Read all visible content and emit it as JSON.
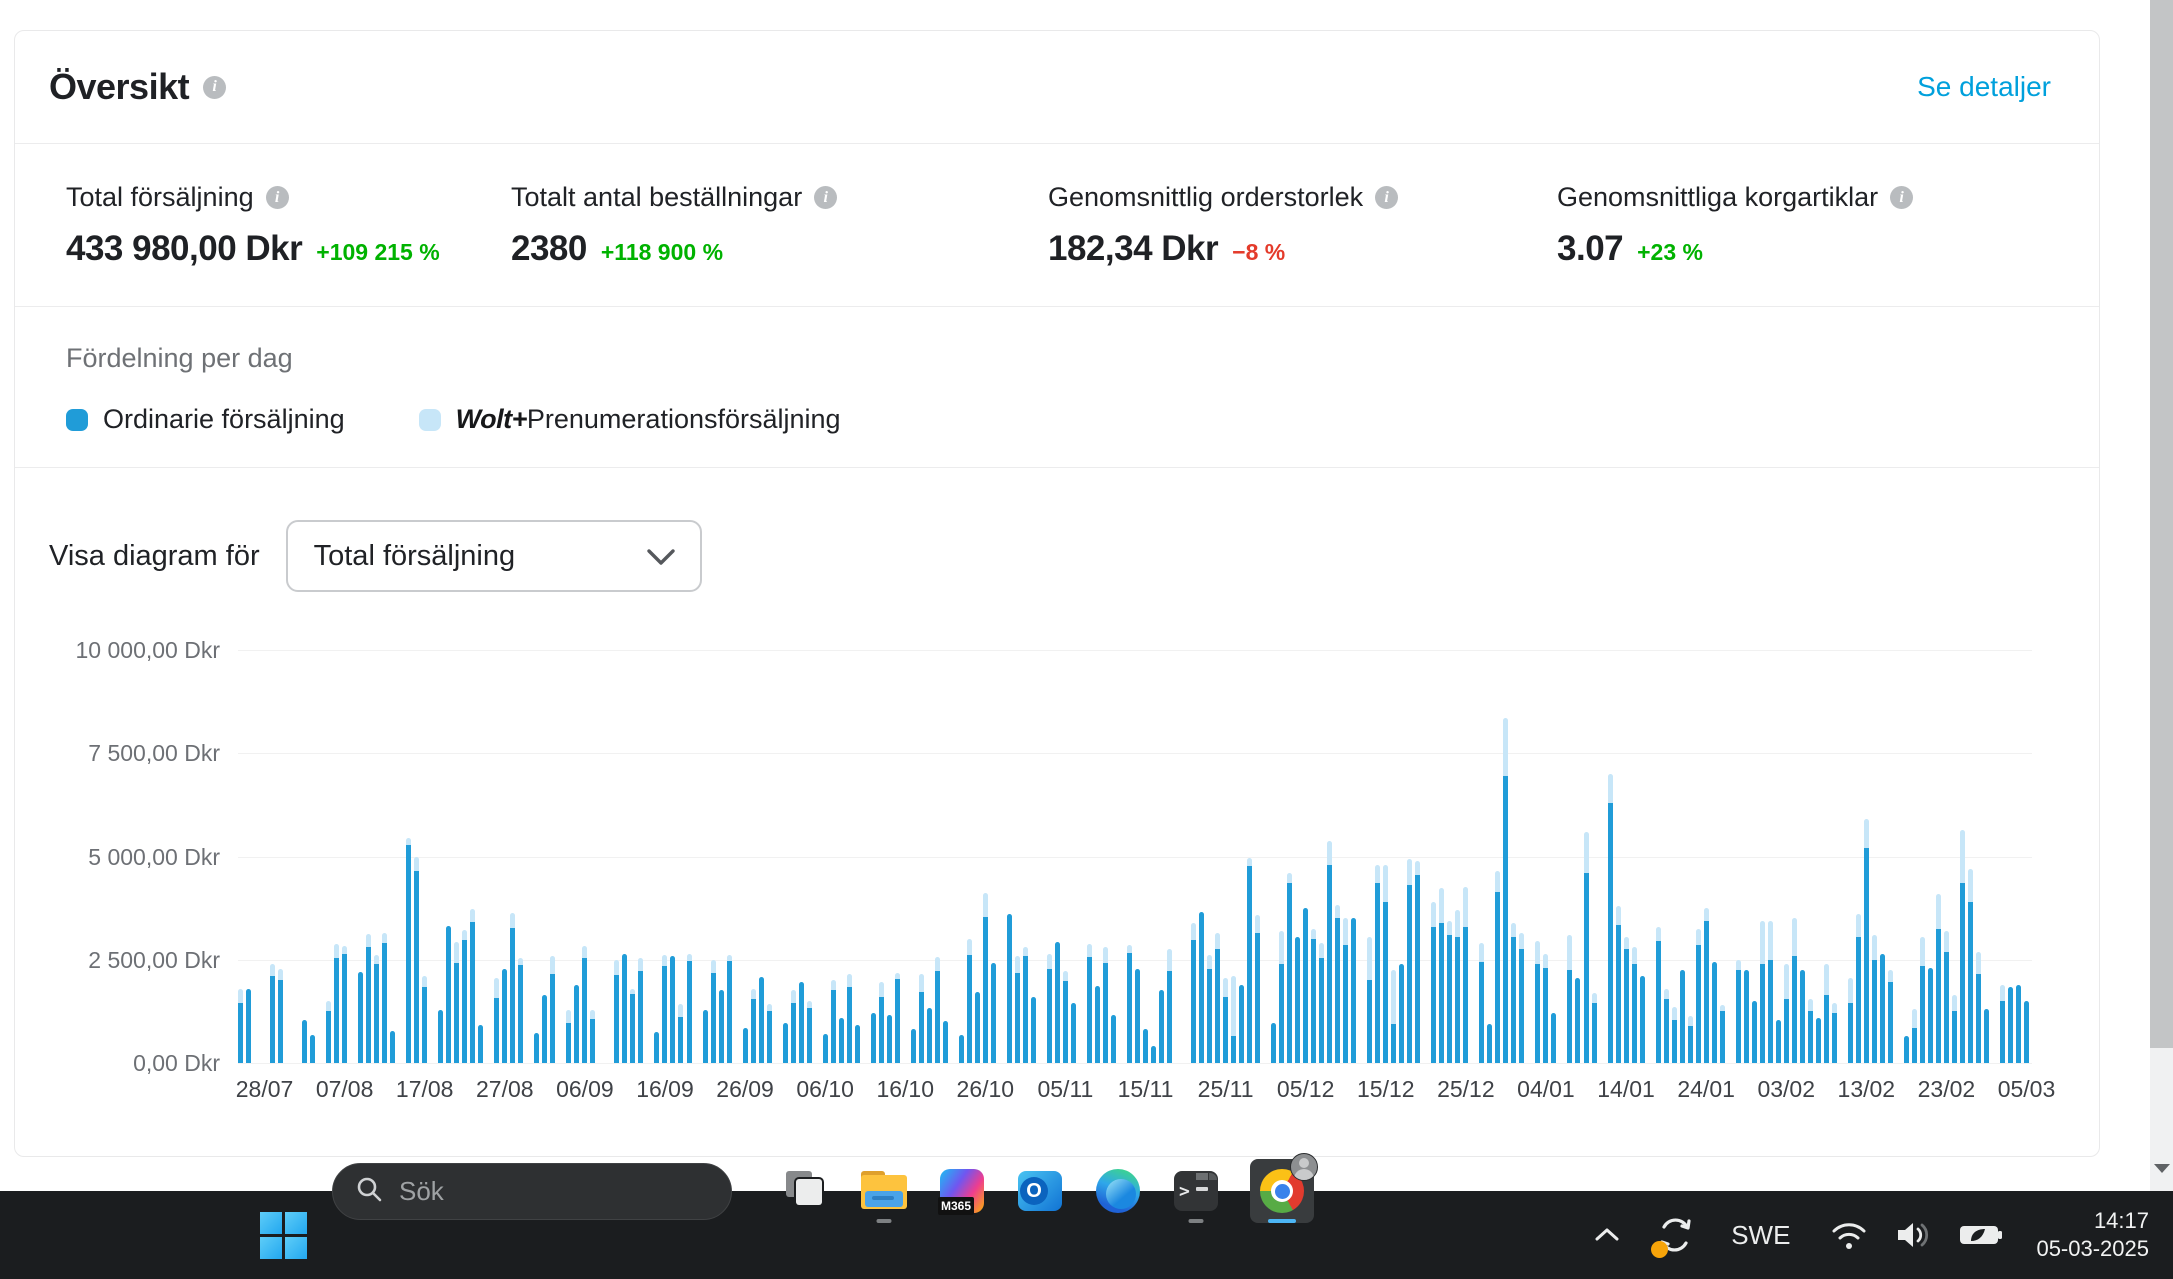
{
  "overview_card": {
    "title": "Översikt",
    "see_details": "Se detaljer",
    "stats": [
      {
        "label": "Total försäljning",
        "value": "433 980,00 Dkr",
        "delta": "+109 215 %",
        "delta_color": "#00b200"
      },
      {
        "label": "Totalt antal beställningar",
        "value": "2380",
        "delta": "+118 900 %",
        "delta_color": "#00b200"
      },
      {
        "label": "Genomsnittlig orderstorlek",
        "value": "182,34 Dkr",
        "delta": "−8 %",
        "delta_color": "#e43b2b"
      },
      {
        "label": "Genomsnittliga korgartiklar",
        "value": "3.07",
        "delta": "+23 %",
        "delta_color": "#00b200"
      }
    ],
    "distribution": {
      "heading": "Fördelning per dag",
      "legend": [
        {
          "label": "Ordinarie försäljning",
          "color": "#209cd8"
        },
        {
          "brand": "Wolt+",
          "label": "Prenumerationsförsäljning",
          "color": "#c7e6f8"
        }
      ]
    },
    "chart_controls": {
      "label": "Visa diagram för",
      "selected": "Total försäljning"
    }
  },
  "chart_data": {
    "type": "bar",
    "stacked": true,
    "unit": "Dkr",
    "ylim": [
      0,
      10000
    ],
    "grid": true,
    "y_ticks": [
      "10 000,00 Dkr",
      "7 500,00 Dkr",
      "5 000,00 Dkr",
      "2 500,00 Dkr",
      "0,00 Dkr"
    ],
    "x_tick_labels": [
      "28/07",
      "07/08",
      "17/08",
      "27/08",
      "06/09",
      "16/09",
      "26/09",
      "06/10",
      "16/10",
      "26/10",
      "05/11",
      "15/11",
      "25/11",
      "05/12",
      "15/12",
      "25/12",
      "04/01",
      "14/01",
      "24/01",
      "03/02",
      "13/02",
      "23/02",
      "05/03"
    ],
    "x_tick_first_day_index": 3,
    "x_tick_day_step": 10,
    "series_names": [
      "Ordinarie försäljning",
      "Wolt+ Prenumerationsförsäljning"
    ],
    "series_colors": [
      "#209cd8",
      "#c7e6f8"
    ],
    "days": [
      [
        1450,
        350
      ],
      [
        1800,
        0
      ],
      [
        0,
        0
      ],
      [
        0,
        0
      ],
      [
        2100,
        300
      ],
      [
        2000,
        280
      ],
      [
        0,
        0
      ],
      [
        0,
        0
      ],
      [
        1050,
        0
      ],
      [
        680,
        0
      ],
      [
        0,
        0
      ],
      [
        1250,
        250
      ],
      [
        2550,
        330
      ],
      [
        2650,
        180
      ],
      [
        0,
        0
      ],
      [
        2200,
        0
      ],
      [
        2800,
        320
      ],
      [
        2400,
        220
      ],
      [
        2900,
        260
      ],
      [
        780,
        0
      ],
      [
        0,
        0
      ],
      [
        5280,
        170
      ],
      [
        4650,
        330
      ],
      [
        1850,
        250
      ],
      [
        0,
        0
      ],
      [
        1280,
        0
      ],
      [
        3320,
        0
      ],
      [
        2420,
        520
      ],
      [
        2980,
        230
      ],
      [
        3420,
        320
      ],
      [
        930,
        0
      ],
      [
        0,
        0
      ],
      [
        1580,
        470
      ],
      [
        2280,
        0
      ],
      [
        3280,
        360
      ],
      [
        2380,
        160
      ],
      [
        0,
        0
      ],
      [
        730,
        0
      ],
      [
        1640,
        0
      ],
      [
        2160,
        420
      ],
      [
        0,
        0
      ],
      [
        980,
        310
      ],
      [
        1890,
        0
      ],
      [
        2540,
        300
      ],
      [
        1070,
        220
      ],
      [
        0,
        0
      ],
      [
        0,
        0
      ],
      [
        2120,
        380
      ],
      [
        2650,
        0
      ],
      [
        1660,
        140
      ],
      [
        2240,
        300
      ],
      [
        0,
        0
      ],
      [
        760,
        0
      ],
      [
        2340,
        280
      ],
      [
        2580,
        0
      ],
      [
        1120,
        310
      ],
      [
        2460,
        190
      ],
      [
        0,
        0
      ],
      [
        1280,
        0
      ],
      [
        2170,
        330
      ],
      [
        1780,
        0
      ],
      [
        2470,
        150
      ],
      [
        0,
        0
      ],
      [
        840,
        0
      ],
      [
        1540,
        260
      ],
      [
        2080,
        0
      ],
      [
        1260,
        180
      ],
      [
        0,
        0
      ],
      [
        960,
        0
      ],
      [
        1450,
        330
      ],
      [
        1950,
        0
      ],
      [
        1320,
        170
      ],
      [
        0,
        0
      ],
      [
        700,
        0
      ],
      [
        1780,
        240
      ],
      [
        1100,
        0
      ],
      [
        1840,
        310
      ],
      [
        920,
        0
      ],
      [
        0,
        0
      ],
      [
        1210,
        0
      ],
      [
        1610,
        350
      ],
      [
        1160,
        0
      ],
      [
        2030,
        160
      ],
      [
        0,
        0
      ],
      [
        830,
        0
      ],
      [
        1730,
        420
      ],
      [
        1330,
        0
      ],
      [
        2230,
        330
      ],
      [
        1020,
        0
      ],
      [
        0,
        0
      ],
      [
        690,
        0
      ],
      [
        2620,
        380
      ],
      [
        1710,
        0
      ],
      [
        3540,
        570
      ],
      [
        2420,
        0
      ],
      [
        0,
        0
      ],
      [
        3620,
        0
      ],
      [
        2180,
        400
      ],
      [
        2580,
        230
      ],
      [
        1600,
        0
      ],
      [
        0,
        0
      ],
      [
        2280,
        350
      ],
      [
        2940,
        0
      ],
      [
        1980,
        260
      ],
      [
        1450,
        0
      ],
      [
        0,
        0
      ],
      [
        2560,
        310
      ],
      [
        1870,
        0
      ],
      [
        2420,
        390
      ],
      [
        1160,
        0
      ],
      [
        0,
        0
      ],
      [
        2670,
        180
      ],
      [
        2280,
        0
      ],
      [
        830,
        0
      ],
      [
        420,
        0
      ],
      [
        1780,
        0
      ],
      [
        2230,
        540
      ],
      [
        0,
        0
      ],
      [
        0,
        0
      ],
      [
        2990,
        410
      ],
      [
        3660,
        0
      ],
      [
        2280,
        330
      ],
      [
        2760,
        380
      ],
      [
        1600,
        460
      ],
      [
        650,
        1450
      ],
      [
        1900,
        0
      ],
      [
        4780,
        180
      ],
      [
        3160,
        420
      ],
      [
        0,
        0
      ],
      [
        980,
        0
      ],
      [
        2400,
        800
      ],
      [
        4350,
        250
      ],
      [
        3060,
        0
      ],
      [
        3750,
        0
      ],
      [
        3000,
        250
      ],
      [
        2550,
        350
      ],
      [
        4800,
        580
      ],
      [
        3500,
        330
      ],
      [
        2850,
        650
      ],
      [
        3500,
        0
      ],
      [
        0,
        0
      ],
      [
        2000,
        1050
      ],
      [
        4350,
        450
      ],
      [
        3900,
        900
      ],
      [
        950,
        1300
      ],
      [
        2400,
        0
      ],
      [
        4300,
        650
      ],
      [
        4550,
        330
      ],
      [
        0,
        0
      ],
      [
        3300,
        600
      ],
      [
        3400,
        850
      ],
      [
        3100,
        350
      ],
      [
        3050,
        650
      ],
      [
        3300,
        950
      ],
      [
        0,
        0
      ],
      [
        2450,
        450
      ],
      [
        950,
        0
      ],
      [
        4150,
        500
      ],
      [
        6950,
        1400
      ],
      [
        3050,
        350
      ],
      [
        2750,
        400
      ],
      [
        0,
        0
      ],
      [
        2400,
        550
      ],
      [
        2300,
        350
      ],
      [
        1200,
        0
      ],
      [
        0,
        0
      ],
      [
        2250,
        850
      ],
      [
        2050,
        0
      ],
      [
        4600,
        1000
      ],
      [
        1450,
        250
      ],
      [
        0,
        0
      ],
      [
        6300,
        700
      ],
      [
        3350,
        450
      ],
      [
        2750,
        300
      ],
      [
        2400,
        400
      ],
      [
        2100,
        0
      ],
      [
        0,
        0
      ],
      [
        2950,
        350
      ],
      [
        1550,
        250
      ],
      [
        1050,
        300
      ],
      [
        2250,
        0
      ],
      [
        900,
        250
      ],
      [
        2850,
        400
      ],
      [
        3450,
        300
      ],
      [
        2450,
        0
      ],
      [
        1250,
        150
      ],
      [
        0,
        0
      ],
      [
        2250,
        250
      ],
      [
        2250,
        0
      ],
      [
        1500,
        0
      ],
      [
        2400,
        1050
      ],
      [
        2500,
        950
      ],
      [
        1050,
        0
      ],
      [
        1550,
        850
      ],
      [
        2600,
        900
      ],
      [
        2250,
        0
      ],
      [
        1250,
        300
      ],
      [
        1100,
        0
      ],
      [
        1650,
        750
      ],
      [
        1200,
        250
      ],
      [
        0,
        0
      ],
      [
        1450,
        600
      ],
      [
        3050,
        550
      ],
      [
        5200,
        700
      ],
      [
        2500,
        600
      ],
      [
        2650,
        0
      ],
      [
        1950,
        300
      ],
      [
        0,
        0
      ],
      [
        650,
        0
      ],
      [
        850,
        450
      ],
      [
        2350,
        700
      ],
      [
        2300,
        0
      ],
      [
        3250,
        850
      ],
      [
        2700,
        500
      ],
      [
        1250,
        400
      ],
      [
        4350,
        1300
      ],
      [
        3900,
        800
      ],
      [
        2150,
        550
      ],
      [
        1300,
        0
      ],
      [
        0,
        0
      ],
      [
        1500,
        400
      ],
      [
        1850,
        0
      ],
      [
        1900,
        0
      ],
      [
        1500,
        0
      ]
    ]
  },
  "taskbar": {
    "search_placeholder": "Sök",
    "icons": [
      "start",
      "task-view",
      "file-explorer",
      "m365-copilot",
      "outlook",
      "edge",
      "terminal",
      "chrome"
    ],
    "m365_badge": "M365",
    "tray": {
      "language": "SWE",
      "time": "14:17",
      "date": "05-03-2025"
    }
  }
}
